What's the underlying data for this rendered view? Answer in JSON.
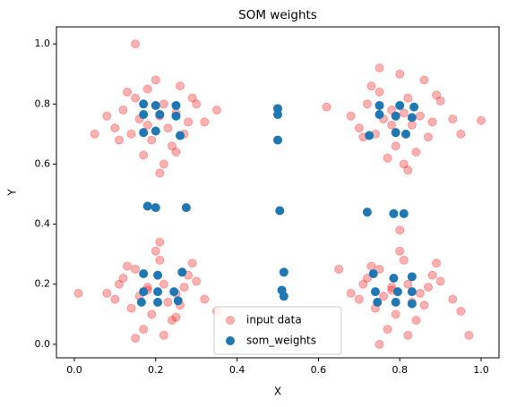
{
  "chart_data": {
    "type": "scatter",
    "title": "SOM weights",
    "x_label": "X",
    "y_label": "Y",
    "xlim": [
      -0.044,
      1.044
    ],
    "ylim": [
      -0.045,
      1.057
    ],
    "xticks": [
      {
        "value": 0,
        "label": "0.0"
      },
      {
        "value": 0.2,
        "label": "0.2"
      },
      {
        "value": 0.4,
        "label": "0.4"
      },
      {
        "value": 0.6,
        "label": "0.6"
      },
      {
        "value": 0.8,
        "label": "0.8"
      },
      {
        "value": 1,
        "label": "1.0"
      }
    ],
    "yticks": [
      {
        "value": 0,
        "label": "0.0"
      },
      {
        "value": 0.2,
        "label": "0.2"
      },
      {
        "value": 0.4,
        "label": "0.4"
      },
      {
        "value": 0.6,
        "label": "0.6"
      },
      {
        "value": 0.8,
        "label": "0.8"
      },
      {
        "value": 1,
        "label": "1.0"
      }
    ],
    "legend": "lower center",
    "series": [
      {
        "name": "input data",
        "color": "#ff0000",
        "alpha": 0.3,
        "x": [
          0.12,
          0.15,
          0.18,
          0.22,
          0.25,
          0.28,
          0.1,
          0.14,
          0.19,
          0.23,
          0.27,
          0.3,
          0.16,
          0.21,
          0.24,
          0.13,
          0.17,
          0.26,
          0.08,
          0.32,
          0.2,
          0.22,
          0.11,
          0.29,
          0.18,
          0.05,
          0.35,
          0.21,
          0.15,
          0.25,
          0.72,
          0.75,
          0.78,
          0.82,
          0.85,
          0.88,
          0.7,
          0.74,
          0.79,
          0.83,
          0.87,
          0.9,
          0.76,
          0.81,
          0.84,
          0.73,
          0.77,
          0.86,
          0.68,
          0.93,
          0.8,
          0.82,
          0.71,
          0.89,
          0.78,
          0.62,
          0.95,
          0.81,
          0.75,
          1.0,
          0.12,
          0.15,
          0.18,
          0.22,
          0.25,
          0.28,
          0.1,
          0.14,
          0.19,
          0.23,
          0.27,
          0.3,
          0.16,
          0.21,
          0.24,
          0.13,
          0.17,
          0.26,
          0.08,
          0.32,
          0.2,
          0.22,
          0.11,
          0.29,
          0.18,
          0.01,
          0.35,
          0.21,
          0.15,
          0.25,
          0.72,
          0.75,
          0.78,
          0.82,
          0.85,
          0.88,
          0.7,
          0.74,
          0.79,
          0.83,
          0.87,
          0.9,
          0.76,
          0.81,
          0.84,
          0.73,
          0.77,
          0.86,
          0.68,
          0.93,
          0.8,
          0.82,
          0.71,
          0.89,
          0.78,
          0.65,
          0.95,
          0.8,
          0.75,
          0.97
        ],
        "values": [
          0.78,
          0.82,
          0.85,
          0.8,
          0.77,
          0.74,
          0.72,
          0.7,
          0.68,
          0.72,
          0.7,
          0.8,
          0.75,
          0.76,
          0.66,
          0.84,
          0.63,
          0.86,
          0.76,
          0.74,
          0.88,
          0.6,
          0.68,
          0.82,
          0.73,
          0.7,
          0.78,
          0.57,
          1.0,
          0.64,
          0.8,
          0.84,
          0.78,
          0.82,
          0.76,
          0.74,
          0.72,
          0.7,
          0.66,
          0.73,
          0.69,
          0.81,
          0.75,
          0.77,
          0.64,
          0.86,
          0.62,
          0.88,
          0.76,
          0.75,
          0.9,
          0.58,
          0.69,
          0.83,
          0.73,
          0.79,
          0.7,
          0.6,
          0.92,
          0.745,
          0.22,
          0.25,
          0.18,
          0.2,
          0.17,
          0.23,
          0.15,
          0.12,
          0.1,
          0.14,
          0.19,
          0.21,
          0.16,
          0.28,
          0.08,
          0.26,
          0.05,
          0.13,
          0.17,
          0.15,
          0.31,
          0.03,
          0.2,
          0.27,
          0.19,
          0.17,
          0.11,
          0.34,
          0.02,
          0.09,
          0.22,
          0.25,
          0.18,
          0.2,
          0.17,
          0.23,
          0.15,
          0.12,
          0.1,
          0.14,
          0.19,
          0.21,
          0.16,
          0.28,
          0.08,
          0.26,
          0.05,
          0.13,
          0.17,
          0.15,
          0.31,
          0.03,
          0.2,
          0.27,
          0.19,
          0.25,
          0.11,
          0.38,
          0.0,
          0.03
        ]
      },
      {
        "name": "som_weights",
        "color": "#1f77b4",
        "alpha": 1,
        "x": [
          0.17,
          0.2,
          0.25,
          0.17,
          0.21,
          0.25,
          0.17,
          0.2,
          0.26,
          0.5,
          0.5,
          0.5,
          0.505,
          0.515,
          0.51,
          0.515,
          0.75,
          0.8,
          0.835,
          0.75,
          0.79,
          0.83,
          0.725,
          0.79,
          0.815,
          0.18,
          0.2,
          0.275,
          0.72,
          0.785,
          0.81,
          0.17,
          0.205,
          0.265,
          0.17,
          0.205,
          0.245,
          0.165,
          0.205,
          0.255,
          0.735,
          0.785,
          0.83,
          0.74,
          0.795,
          0.83,
          0.745,
          0.79,
          0.83
        ],
        "values": [
          0.8,
          0.795,
          0.795,
          0.765,
          0.765,
          0.76,
          0.705,
          0.71,
          0.695,
          0.785,
          0.765,
          0.68,
          0.445,
          0.24,
          0.18,
          0.16,
          0.795,
          0.795,
          0.79,
          0.765,
          0.76,
          0.755,
          0.695,
          0.705,
          0.7,
          0.46,
          0.455,
          0.455,
          0.44,
          0.435,
          0.435,
          0.235,
          0.23,
          0.24,
          0.175,
          0.175,
          0.175,
          0.14,
          0.14,
          0.145,
          0.235,
          0.22,
          0.225,
          0.175,
          0.175,
          0.175,
          0.14,
          0.14,
          0.135
        ]
      }
    ]
  }
}
